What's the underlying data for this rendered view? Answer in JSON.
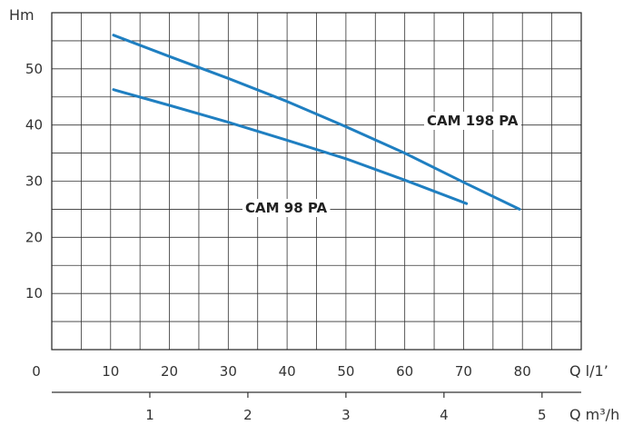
{
  "chart_data": {
    "type": "line",
    "title": "",
    "ylabel": "Hm",
    "xlabel": "Q l/1’",
    "x2label": "Q m³/h",
    "xlim": [
      0,
      90
    ],
    "ylim": [
      0,
      60
    ],
    "x2lim": [
      0,
      5.4
    ],
    "x_ticks": [
      "0",
      "10",
      "20",
      "30",
      "40",
      "50",
      "60",
      "70",
      "80"
    ],
    "x2_ticks": [
      "1",
      "2",
      "3",
      "4",
      "5"
    ],
    "y_ticks": [
      "10",
      "20",
      "30",
      "40",
      "50"
    ],
    "grid": true,
    "legend": "none",
    "series": [
      {
        "name": "CAM 198 PA",
        "color": "#1f7fc1",
        "x": [
          10.5,
          20,
          30,
          40,
          50,
          60,
          70,
          79.5
        ],
        "y": [
          56,
          52.2,
          48.3,
          44.2,
          39.7,
          35,
          29.8,
          25
        ]
      },
      {
        "name": "CAM 98 PA",
        "color": "#1f7fc1",
        "x": [
          10.5,
          20,
          30,
          40,
          50,
          60,
          70.5
        ],
        "y": [
          46.3,
          43.5,
          40.5,
          37.3,
          34,
          30.2,
          26
        ]
      }
    ]
  }
}
